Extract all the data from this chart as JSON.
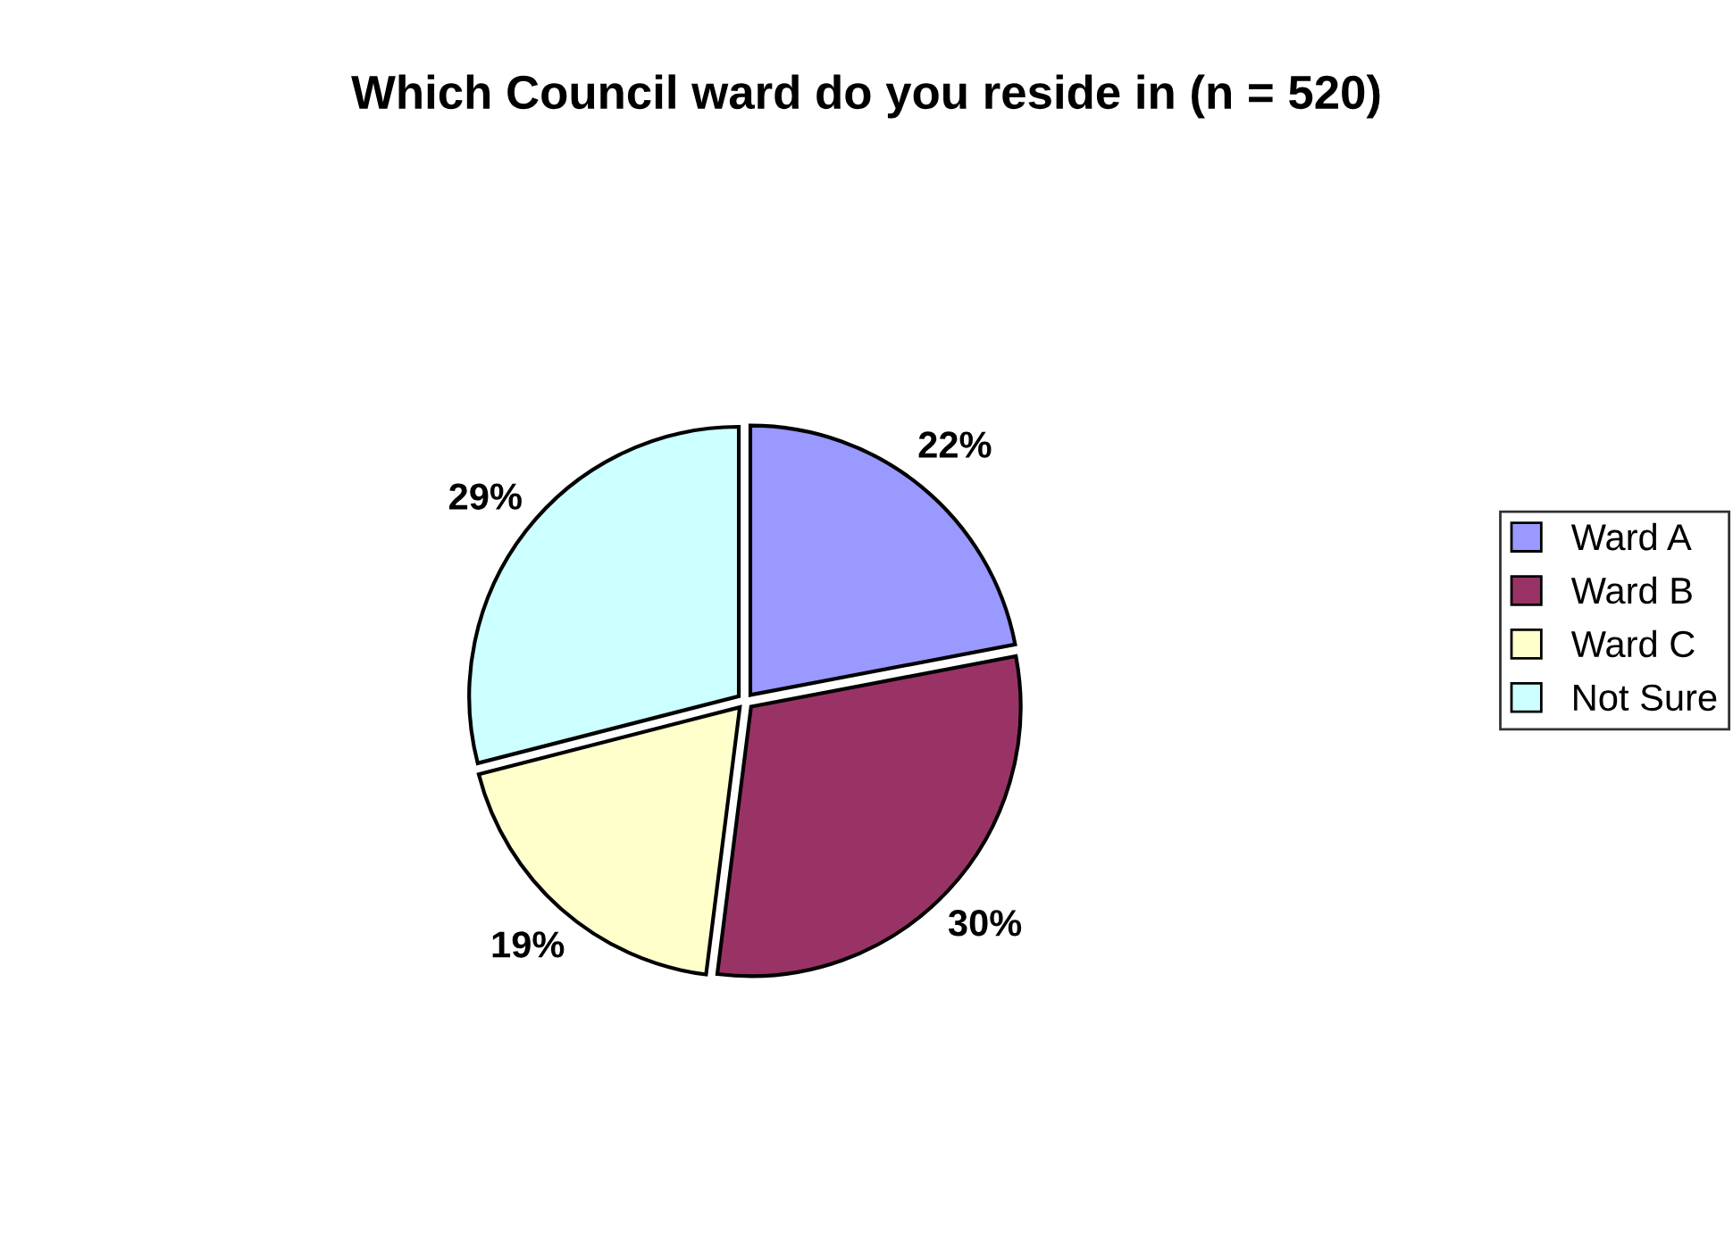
{
  "chart_data": {
    "type": "pie",
    "title": "Which Council ward do you reside in (n = 520)",
    "categories": [
      "Ward A",
      "Ward B",
      "Ward C",
      "Not Sure"
    ],
    "values": [
      22,
      30,
      19,
      29
    ],
    "value_labels": [
      "22%",
      "30%",
      "19%",
      "29%"
    ],
    "colors": [
      "#9999ff",
      "#993366",
      "#ffffcc",
      "#ccffff"
    ],
    "legend": "right"
  }
}
